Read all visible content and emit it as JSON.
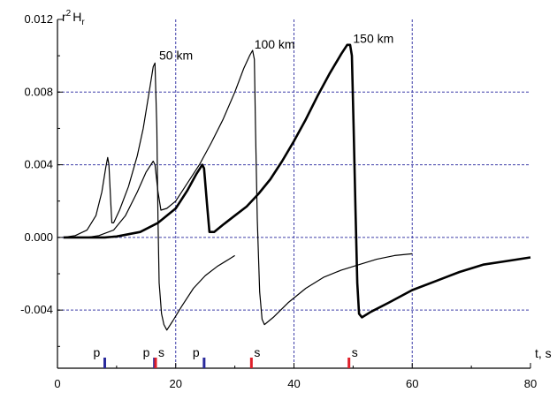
{
  "chart_data": {
    "type": "line",
    "ylabel_base": "r",
    "ylabel_sup": "2",
    "ylabel_main": "H",
    "ylabel_sub": "r",
    "xlabel": "t, s",
    "xlim": [
      0,
      80
    ],
    "ylim": [
      -0.0072,
      0.012
    ],
    "x_ticks": [
      {
        "value": 0,
        "label": "0"
      },
      {
        "value": 20,
        "label": "20"
      },
      {
        "value": 40,
        "label": "40"
      },
      {
        "value": 60,
        "label": "60"
      },
      {
        "value": 80,
        "label": "80"
      }
    ],
    "y_ticks": [
      {
        "value": 0.012,
        "label": "0.012"
      },
      {
        "value": 0.008,
        "label": "0.008"
      },
      {
        "value": 0.004,
        "label": "0.004"
      },
      {
        "value": 0.0,
        "label": "0.000"
      },
      {
        "value": -0.004,
        "label": "-0.004"
      }
    ],
    "grid": {
      "horizontal": [
        0.008,
        0.004,
        0.0,
        -0.004
      ],
      "vertical": [
        20,
        40,
        60
      ],
      "color": "#3d3da8"
    },
    "series": [
      {
        "name": "50 km",
        "width": 1.2,
        "color": "#000000",
        "label_x": 17.2,
        "label_y": 0.0098,
        "points": [
          [
            1,
            0
          ],
          [
            3,
            0.0001
          ],
          [
            5,
            0.0004
          ],
          [
            6.5,
            0.0012
          ],
          [
            7.5,
            0.0025
          ],
          [
            8.2,
            0.0039
          ],
          [
            8.5,
            0.0044
          ],
          [
            8.7,
            0.004
          ],
          [
            9.0,
            0.002
          ],
          [
            9.2,
            0.0008
          ],
          [
            9.5,
            0.0008
          ],
          [
            10.5,
            0.0015
          ],
          [
            12,
            0.0028
          ],
          [
            13.5,
            0.0045
          ],
          [
            14.5,
            0.006
          ],
          [
            15.5,
            0.008
          ],
          [
            16.2,
            0.0094
          ],
          [
            16.5,
            0.0096
          ],
          [
            16.8,
            0.006
          ],
          [
            17.0,
            0.001
          ],
          [
            17.2,
            -0.0025
          ],
          [
            17.6,
            -0.0042
          ],
          [
            18.0,
            -0.0048
          ],
          [
            18.5,
            -0.0051
          ],
          [
            19.5,
            -0.0046
          ],
          [
            21,
            -0.0038
          ],
          [
            23,
            -0.0028
          ],
          [
            25,
            -0.0021
          ],
          [
            27,
            -0.0016
          ],
          [
            29,
            -0.0012
          ],
          [
            30,
            -0.001
          ]
        ]
      },
      {
        "name": "100 km",
        "width": 1.2,
        "color": "#000000",
        "label_x": 33.3,
        "label_y": 0.0104,
        "points": [
          [
            1,
            0
          ],
          [
            5,
            0
          ],
          [
            7,
            0.0001
          ],
          [
            9.5,
            0.0004
          ],
          [
            11.5,
            0.0012
          ],
          [
            13.5,
            0.0025
          ],
          [
            15,
            0.0036
          ],
          [
            16.2,
            0.0042
          ],
          [
            16.5,
            0.004
          ],
          [
            17,
            0.0025
          ],
          [
            17.5,
            0.0015
          ],
          [
            18.5,
            0.0016
          ],
          [
            20,
            0.002
          ],
          [
            22,
            0.003
          ],
          [
            24,
            0.004
          ],
          [
            26,
            0.0052
          ],
          [
            28,
            0.0065
          ],
          [
            30,
            0.008
          ],
          [
            31.5,
            0.0093
          ],
          [
            32.5,
            0.01
          ],
          [
            33,
            0.0103
          ],
          [
            33.3,
            0.0098
          ],
          [
            33.5,
            0.006
          ],
          [
            33.8,
            0.001
          ],
          [
            34.2,
            -0.003
          ],
          [
            34.6,
            -0.0045
          ],
          [
            35.0,
            -0.0048
          ],
          [
            36.5,
            -0.0044
          ],
          [
            39,
            -0.0036
          ],
          [
            42,
            -0.0028
          ],
          [
            45,
            -0.0022
          ],
          [
            48,
            -0.0018
          ],
          [
            51,
            -0.0015
          ],
          [
            54,
            -0.0012
          ],
          [
            57,
            -0.001
          ],
          [
            60,
            -0.0009
          ]
        ]
      },
      {
        "name": "150 km",
        "width": 2.6,
        "color": "#000000",
        "label_x": 50.0,
        "label_y": 0.0107,
        "points": [
          [
            1,
            0
          ],
          [
            8,
            0
          ],
          [
            10,
            5e-05
          ],
          [
            14,
            0.0003
          ],
          [
            17,
            0.0008
          ],
          [
            20,
            0.0016
          ],
          [
            22,
            0.0026
          ],
          [
            23.5,
            0.0035
          ],
          [
            24.5,
            0.004
          ],
          [
            24.8,
            0.0038
          ],
          [
            25.3,
            0.0018
          ],
          [
            25.7,
            0.0003
          ],
          [
            26.5,
            0.0003
          ],
          [
            28,
            0.0007
          ],
          [
            30,
            0.0012
          ],
          [
            32,
            0.0017
          ],
          [
            34,
            0.0024
          ],
          [
            36,
            0.0032
          ],
          [
            38,
            0.0042
          ],
          [
            40,
            0.0053
          ],
          [
            42,
            0.0065
          ],
          [
            44,
            0.0078
          ],
          [
            46,
            0.009
          ],
          [
            48,
            0.0101
          ],
          [
            49,
            0.0106
          ],
          [
            49.5,
            0.0106
          ],
          [
            49.8,
            0.01
          ],
          [
            50.1,
            0.006
          ],
          [
            50.4,
            0.0015
          ],
          [
            50.7,
            -0.0025
          ],
          [
            51.0,
            -0.0042
          ],
          [
            51.5,
            -0.0044
          ],
          [
            53,
            -0.0041
          ],
          [
            56,
            -0.0036
          ],
          [
            60,
            -0.0029
          ],
          [
            64,
            -0.0024
          ],
          [
            68,
            -0.0019
          ],
          [
            72,
            -0.0015
          ],
          [
            76,
            -0.0013
          ],
          [
            80,
            -0.0011
          ]
        ]
      }
    ],
    "arrival_markers": [
      {
        "label": "p",
        "x": 8.0,
        "color": "#2a2a9c"
      },
      {
        "label": "p",
        "x": 16.4,
        "color": "#2a2a9c"
      },
      {
        "label": "s",
        "x": 16.6,
        "color": "#e0202a"
      },
      {
        "label": "p",
        "x": 24.8,
        "color": "#2a2a9c"
      },
      {
        "label": "s",
        "x": 32.8,
        "color": "#e0202a"
      },
      {
        "label": "s",
        "x": 49.3,
        "color": "#e0202a"
      }
    ]
  }
}
